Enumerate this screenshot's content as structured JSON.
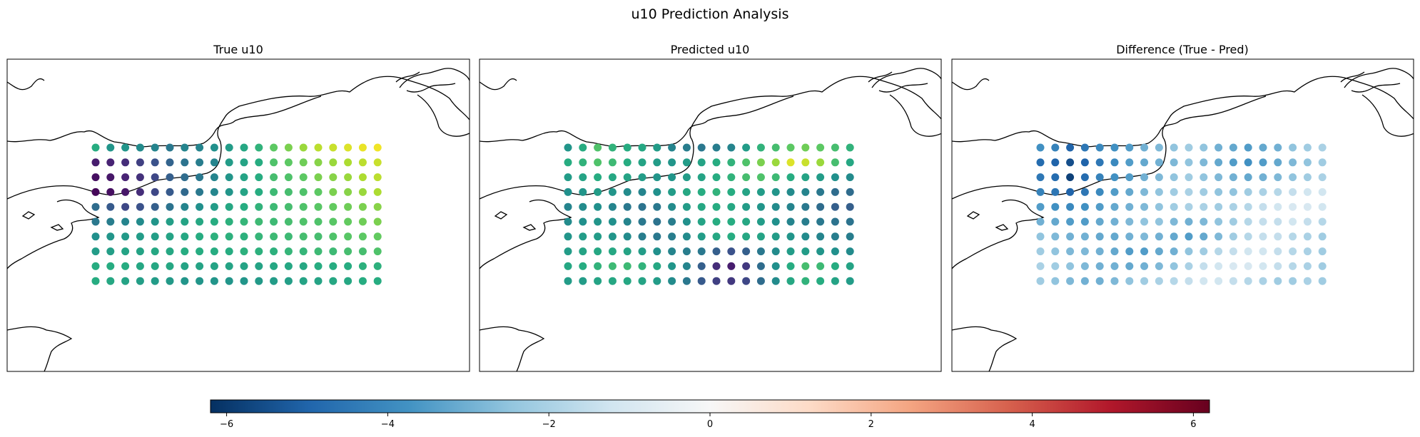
{
  "figure": {
    "title": "u10 Prediction Analysis"
  },
  "chart_data": [
    {
      "type": "scatter",
      "subtitle": "True u10",
      "colormap": "viridis",
      "grid": {
        "cols": 20,
        "rows": 10
      },
      "values": [
        [
          0.62,
          0.52,
          0.52,
          0.48,
          0.45,
          0.4,
          0.45,
          0.45,
          0.5,
          0.55,
          0.6,
          0.65,
          0.75,
          0.8,
          0.85,
          0.9,
          0.92,
          0.95,
          0.97,
          0.98
        ],
        [
          0.1,
          0.12,
          0.15,
          0.2,
          0.25,
          0.32,
          0.38,
          0.42,
          0.45,
          0.55,
          0.58,
          0.62,
          0.72,
          0.75,
          0.78,
          0.82,
          0.85,
          0.88,
          0.9,
          0.92
        ],
        [
          0.05,
          0.08,
          0.12,
          0.16,
          0.22,
          0.3,
          0.35,
          0.4,
          0.45,
          0.52,
          0.58,
          0.62,
          0.7,
          0.72,
          0.75,
          0.8,
          0.82,
          0.85,
          0.88,
          0.9
        ],
        [
          0.02,
          0.05,
          0.08,
          0.15,
          0.22,
          0.28,
          0.34,
          0.4,
          0.46,
          0.52,
          0.58,
          0.62,
          0.68,
          0.7,
          0.72,
          0.75,
          0.8,
          0.82,
          0.85,
          0.88
        ],
        [
          0.35,
          0.28,
          0.22,
          0.25,
          0.3,
          0.38,
          0.45,
          0.5,
          0.55,
          0.6,
          0.62,
          0.65,
          0.68,
          0.7,
          0.72,
          0.74,
          0.76,
          0.78,
          0.8,
          0.82
        ],
        [
          0.4,
          0.42,
          0.45,
          0.48,
          0.52,
          0.56,
          0.58,
          0.6,
          0.62,
          0.64,
          0.66,
          0.68,
          0.68,
          0.7,
          0.72,
          0.72,
          0.74,
          0.76,
          0.78,
          0.8
        ],
        [
          0.5,
          0.52,
          0.54,
          0.55,
          0.56,
          0.58,
          0.6,
          0.62,
          0.64,
          0.64,
          0.64,
          0.66,
          0.68,
          0.68,
          0.7,
          0.7,
          0.72,
          0.74,
          0.75,
          0.76
        ],
        [
          0.55,
          0.56,
          0.58,
          0.58,
          0.6,
          0.6,
          0.62,
          0.62,
          0.62,
          0.62,
          0.64,
          0.64,
          0.64,
          0.66,
          0.66,
          0.68,
          0.68,
          0.7,
          0.7,
          0.72
        ],
        [
          0.62,
          0.62,
          0.62,
          0.6,
          0.6,
          0.6,
          0.58,
          0.58,
          0.58,
          0.58,
          0.58,
          0.58,
          0.6,
          0.6,
          0.6,
          0.62,
          0.62,
          0.62,
          0.64,
          0.64
        ],
        [
          0.62,
          0.6,
          0.58,
          0.56,
          0.55,
          0.54,
          0.52,
          0.52,
          0.52,
          0.52,
          0.52,
          0.54,
          0.55,
          0.56,
          0.58,
          0.58,
          0.6,
          0.6,
          0.62,
          0.62
        ]
      ]
    },
    {
      "type": "scatter",
      "subtitle": "Predicted u10",
      "colormap": "viridis",
      "grid": {
        "cols": 20,
        "rows": 10
      },
      "values": [
        [
          0.52,
          0.62,
          0.72,
          0.65,
          0.62,
          0.6,
          0.55,
          0.45,
          0.42,
          0.4,
          0.42,
          0.45,
          0.55,
          0.65,
          0.7,
          0.75,
          0.78,
          0.75,
          0.7,
          0.65
        ],
        [
          0.62,
          0.65,
          0.72,
          0.68,
          0.62,
          0.58,
          0.55,
          0.52,
          0.55,
          0.58,
          0.62,
          0.65,
          0.72,
          0.8,
          0.85,
          0.95,
          0.92,
          0.85,
          0.7,
          0.6
        ],
        [
          0.55,
          0.58,
          0.62,
          0.6,
          0.58,
          0.55,
          0.52,
          0.52,
          0.55,
          0.58,
          0.62,
          0.65,
          0.7,
          0.72,
          0.68,
          0.62,
          0.58,
          0.55,
          0.5,
          0.48
        ],
        [
          0.5,
          0.52,
          0.55,
          0.52,
          0.48,
          0.45,
          0.5,
          0.55,
          0.6,
          0.62,
          0.65,
          0.62,
          0.58,
          0.55,
          0.52,
          0.48,
          0.45,
          0.4,
          0.35,
          0.35
        ],
        [
          0.45,
          0.48,
          0.5,
          0.45,
          0.4,
          0.38,
          0.4,
          0.48,
          0.55,
          0.6,
          0.62,
          0.6,
          0.55,
          0.52,
          0.48,
          0.45,
          0.4,
          0.35,
          0.3,
          0.3
        ],
        [
          0.48,
          0.5,
          0.52,
          0.5,
          0.45,
          0.4,
          0.38,
          0.42,
          0.5,
          0.58,
          0.62,
          0.62,
          0.6,
          0.55,
          0.5,
          0.45,
          0.42,
          0.4,
          0.38,
          0.38
        ],
        [
          0.52,
          0.55,
          0.55,
          0.52,
          0.48,
          0.42,
          0.4,
          0.42,
          0.48,
          0.55,
          0.6,
          0.62,
          0.6,
          0.58,
          0.55,
          0.52,
          0.48,
          0.45,
          0.42,
          0.42
        ],
        [
          0.55,
          0.58,
          0.6,
          0.6,
          0.58,
          0.55,
          0.5,
          0.45,
          0.42,
          0.4,
          0.3,
          0.25,
          0.3,
          0.4,
          0.48,
          0.55,
          0.55,
          0.52,
          0.5,
          0.48
        ],
        [
          0.6,
          0.62,
          0.65,
          0.68,
          0.68,
          0.65,
          0.6,
          0.52,
          0.45,
          0.3,
          0.15,
          0.1,
          0.18,
          0.35,
          0.5,
          0.62,
          0.7,
          0.68,
          0.62,
          0.58
        ],
        [
          0.55,
          0.55,
          0.58,
          0.6,
          0.6,
          0.58,
          0.55,
          0.48,
          0.4,
          0.28,
          0.2,
          0.18,
          0.22,
          0.35,
          0.48,
          0.6,
          0.65,
          0.62,
          0.58,
          0.55
        ]
      ]
    },
    {
      "type": "scatter",
      "subtitle": "Difference (True - Pred)",
      "colormap": "RdBu_r",
      "grid": {
        "cols": 20,
        "rows": 10
      },
      "values": [
        [
          -3.8,
          -4.2,
          -5.0,
          -4.5,
          -4.0,
          -3.8,
          -3.5,
          -3.0,
          -2.8,
          -2.5,
          -2.2,
          -2.5,
          -3.0,
          -3.2,
          -3.5,
          -3.2,
          -3.0,
          -2.5,
          -2.2,
          -2.0
        ],
        [
          -4.8,
          -5.0,
          -5.5,
          -5.0,
          -4.5,
          -4.0,
          -3.5,
          -3.2,
          -3.0,
          -2.8,
          -2.5,
          -2.8,
          -3.2,
          -3.5,
          -3.8,
          -3.5,
          -3.2,
          -2.8,
          -2.5,
          -2.2
        ],
        [
          -4.5,
          -4.8,
          -5.8,
          -4.8,
          -4.2,
          -3.8,
          -3.5,
          -3.0,
          -2.8,
          -2.5,
          -2.2,
          -2.5,
          -2.8,
          -3.0,
          -3.2,
          -3.0,
          -2.8,
          -2.5,
          -2.2,
          -2.0
        ],
        [
          -4.2,
          -4.5,
          -5.0,
          -4.5,
          -4.0,
          -3.5,
          -3.2,
          -2.8,
          -2.5,
          -2.2,
          -2.0,
          -2.2,
          -2.5,
          -2.5,
          -2.2,
          -2.0,
          -1.8,
          -1.5,
          -1.2,
          -1.2
        ],
        [
          -3.5,
          -3.8,
          -4.0,
          -3.8,
          -3.5,
          -3.2,
          -3.0,
          -2.8,
          -2.5,
          -2.2,
          -2.0,
          -2.0,
          -2.2,
          -2.0,
          -1.8,
          -1.5,
          -1.2,
          -1.0,
          -1.0,
          -1.2
        ],
        [
          -3.0,
          -3.2,
          -3.5,
          -3.5,
          -3.2,
          -3.0,
          -2.8,
          -2.5,
          -2.5,
          -2.8,
          -3.0,
          -2.8,
          -2.5,
          -2.2,
          -1.8,
          -1.5,
          -1.5,
          -1.2,
          -1.5,
          -1.8
        ],
        [
          -2.5,
          -2.8,
          -3.0,
          -3.0,
          -3.2,
          -3.2,
          -3.0,
          -2.8,
          -3.0,
          -3.2,
          -3.5,
          -3.2,
          -2.8,
          -2.2,
          -1.8,
          -1.5,
          -1.5,
          -1.8,
          -2.0,
          -2.2
        ],
        [
          -2.2,
          -2.5,
          -2.8,
          -2.8,
          -3.0,
          -3.2,
          -3.5,
          -3.5,
          -3.2,
          -3.0,
          -2.5,
          -2.2,
          -1.8,
          -1.5,
          -1.2,
          -1.2,
          -1.5,
          -1.8,
          -2.0,
          -2.2
        ],
        [
          -2.0,
          -2.2,
          -2.5,
          -2.8,
          -3.0,
          -3.0,
          -3.2,
          -3.0,
          -2.8,
          -2.5,
          -2.0,
          -1.5,
          -1.2,
          -1.0,
          -1.0,
          -1.2,
          -1.5,
          -1.8,
          -2.0,
          -2.2
        ],
        [
          -2.2,
          -2.5,
          -2.8,
          -3.0,
          -3.0,
          -2.8,
          -2.5,
          -2.2,
          -2.0,
          -1.8,
          -1.5,
          -1.2,
          -1.2,
          -1.5,
          -1.8,
          -2.0,
          -2.2,
          -2.2,
          -2.0,
          -2.2
        ]
      ]
    }
  ],
  "colorbar": {
    "colormap": "RdBu_r",
    "vmin": -6.2,
    "vmax": 6.2,
    "ticks": [
      -6,
      -4,
      -2,
      0,
      2,
      4,
      6
    ],
    "tick_labels": [
      "−6",
      "−4",
      "−2",
      "0",
      "2",
      "4",
      "6"
    ]
  }
}
